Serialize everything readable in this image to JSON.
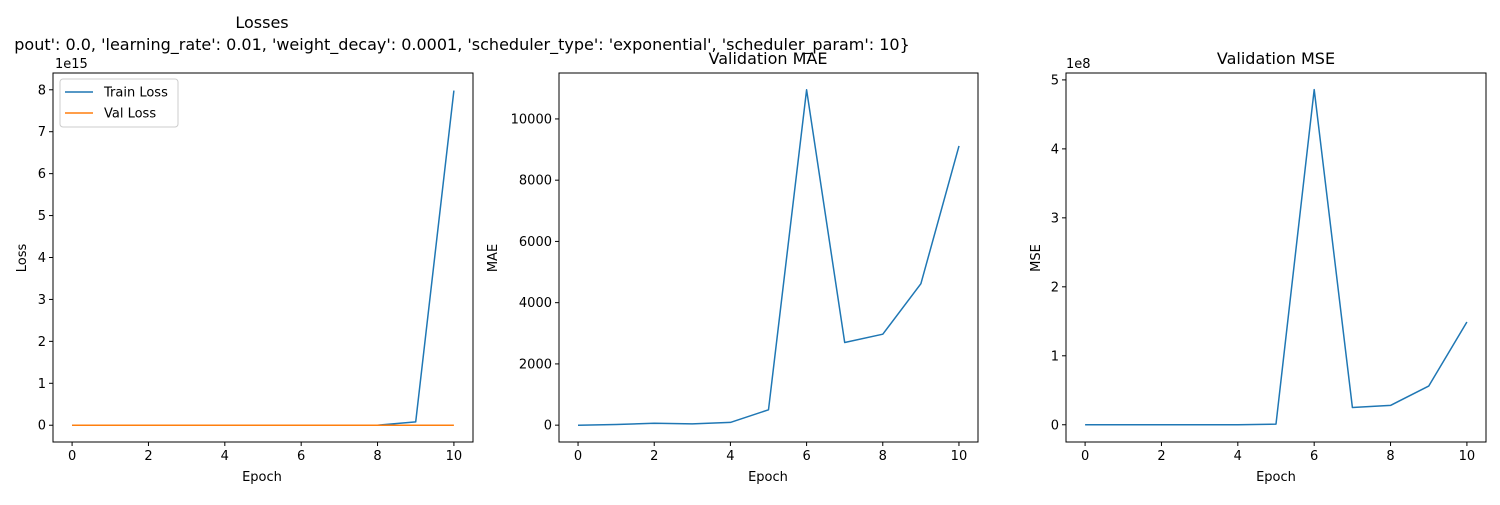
{
  "figure": {
    "suptitle_line1": "Losses",
    "suptitle_line2": "pout': 0.0, 'learning_rate': 0.01, 'weight_decay': 0.0001, 'scheduler_type': 'exponential', 'scheduler_param': 10}"
  },
  "colors": {
    "blue": "#1f77b4",
    "orange": "#ff7f0e"
  },
  "chart_data": [
    {
      "type": "line",
      "title": "",
      "xlabel": "Epoch",
      "ylabel": "Loss",
      "y_multiplier_label": "1e15",
      "xlim": [
        -0.5,
        10.5
      ],
      "ylim": [
        -0.4,
        8.4
      ],
      "xticks": [
        0,
        2,
        4,
        6,
        8,
        10
      ],
      "yticks": [
        0,
        1,
        2,
        3,
        4,
        5,
        6,
        7,
        8
      ],
      "grid": false,
      "legend": "upper-left",
      "x": [
        0,
        1,
        2,
        3,
        4,
        5,
        6,
        7,
        8,
        9,
        10
      ],
      "series": [
        {
          "name": "Train Loss",
          "color": "#1f77b4",
          "values": [
            0,
            0,
            0,
            0,
            0,
            0,
            0,
            0,
            0.001,
            0.08,
            7.98
          ]
        },
        {
          "name": "Val Loss",
          "color": "#ff7f0e",
          "values": [
            0,
            0,
            0,
            0,
            0,
            0,
            0,
            0,
            0,
            0,
            0
          ]
        }
      ]
    },
    {
      "type": "line",
      "title": "Validation MAE",
      "xlabel": "Epoch",
      "ylabel": "MAE",
      "y_multiplier_label": "",
      "xlim": [
        -0.5,
        10.5
      ],
      "ylim": [
        -550,
        11500
      ],
      "xticks": [
        0,
        2,
        4,
        6,
        8,
        10
      ],
      "yticks": [
        0,
        2000,
        4000,
        6000,
        8000,
        10000
      ],
      "grid": false,
      "legend": "none",
      "x": [
        0,
        1,
        2,
        3,
        4,
        5,
        6,
        7,
        8,
        9,
        10
      ],
      "series": [
        {
          "name": "",
          "color": "#1f77b4",
          "values": [
            0,
            20,
            60,
            40,
            90,
            500,
            10950,
            2700,
            2970,
            4620,
            9120
          ]
        }
      ]
    },
    {
      "type": "line",
      "title": "Validation MSE",
      "xlabel": "Epoch",
      "ylabel": "MSE",
      "y_multiplier_label": "1e8",
      "xlim": [
        -0.5,
        10.5
      ],
      "ylim": [
        -0.25,
        5.1
      ],
      "xticks": [
        0,
        2,
        4,
        6,
        8,
        10
      ],
      "yticks": [
        0,
        1,
        2,
        3,
        4,
        5
      ],
      "grid": false,
      "legend": "none",
      "x": [
        0,
        1,
        2,
        3,
        4,
        5,
        6,
        7,
        8,
        9,
        10
      ],
      "series": [
        {
          "name": "",
          "color": "#1f77b4",
          "values": [
            0,
            0,
            0,
            0,
            0,
            0.01,
            4.86,
            0.25,
            0.28,
            0.56,
            1.49
          ]
        }
      ]
    }
  ]
}
